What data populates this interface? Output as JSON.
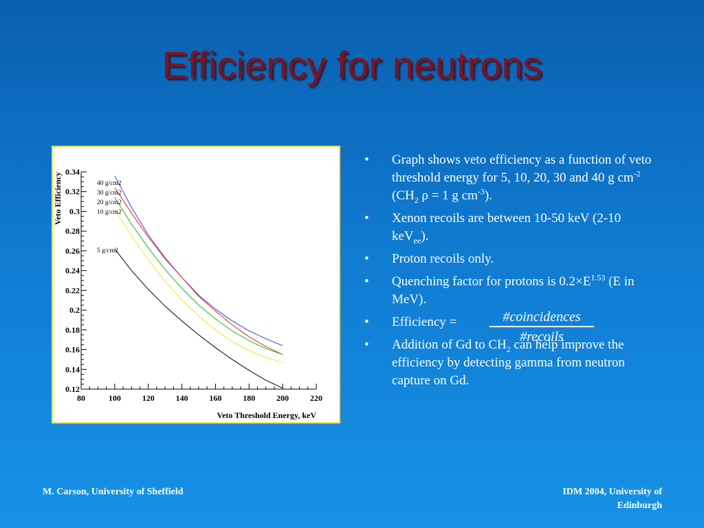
{
  "title": "Efficiency for neutrons",
  "bullets": {
    "b1": {
      "t1": "Graph shows veto efficiency as a function of veto threshold energy for 5, 10, 20, 30 and 40 g cm",
      "s1": "-2",
      "t2": " (CH",
      "s2": "2",
      "t3": " ρ = 1 g cm",
      "s3": "-3",
      "t4": ")."
    },
    "b2": {
      "t1": "Xenon recoils are between 10-50 keV (2-10 keV",
      "s1": "ee",
      "t2": ")."
    },
    "b3": {
      "t1": "Proton recoils only."
    },
    "b4": {
      "t1": "Quenching factor for protons is 0.2×E",
      "s1": "1.53",
      "t2": " (E in MeV)."
    },
    "b5": {
      "t1": "Efficiency ="
    },
    "b6": {
      "t1": "Addition of Gd to CH",
      "s1": "2",
      "t2": " can help improve the efficiency by detecting gamma from neutron capture on Gd."
    }
  },
  "fraction": {
    "numerator": "#coincidences",
    "denominator": "#recoils"
  },
  "footer": {
    "left": "M. Carson, University of Sheffield",
    "right": "IDM 2004, University of Edinburgh"
  },
  "chart_data": {
    "type": "line",
    "title": "",
    "xlabel": "Veto Threshold Energy, keV",
    "ylabel": "Veto Efficiency",
    "xlim": [
      80,
      220
    ],
    "ylim": [
      0.12,
      0.34
    ],
    "xticks": [
      "80",
      "100",
      "120",
      "140",
      "160",
      "180",
      "200",
      "220"
    ],
    "yticks": [
      "0.12",
      "0.14",
      "0.16",
      "0.18",
      "0.2",
      "0.22",
      "0.24",
      "0.26",
      "0.28",
      "0.3",
      "0.32",
      "0.34"
    ],
    "x": [
      100,
      110,
      120,
      130,
      140,
      150,
      160,
      170,
      180,
      190,
      200
    ],
    "series": [
      {
        "name": "40 g/cm2",
        "color": "#2b3cff",
        "values": [
          0.336,
          0.304,
          0.276,
          0.253,
          0.233,
          0.215,
          0.201,
          0.189,
          0.179,
          0.171,
          0.164
        ]
      },
      {
        "name": "30 g/cm2",
        "color": "#ff2020",
        "values": [
          0.324,
          0.298,
          0.274,
          0.252,
          0.233,
          0.214,
          0.199,
          0.185,
          0.173,
          0.163,
          0.155
        ]
      },
      {
        "name": "20 g/cm2",
        "color": "#18c018",
        "values": [
          0.314,
          0.287,
          0.263,
          0.241,
          0.222,
          0.205,
          0.191,
          0.179,
          0.169,
          0.161,
          0.155
        ]
      },
      {
        "name": "10 g/cm2",
        "color": "#f2e62a",
        "values": [
          0.302,
          0.275,
          0.251,
          0.229,
          0.21,
          0.194,
          0.18,
          0.168,
          0.159,
          0.152,
          0.147
        ]
      },
      {
        "name": "5 g/cm2",
        "color": "#000000",
        "values": [
          0.262,
          0.24,
          0.221,
          0.204,
          0.189,
          0.175,
          0.162,
          0.15,
          0.139,
          0.129,
          0.121
        ]
      }
    ],
    "series_label_order": [
      "40 g/cm2",
      "30 g/cm2",
      "20 g/cm2",
      "10 g/cm2",
      "5 g/cm2"
    ],
    "grid": false
  }
}
